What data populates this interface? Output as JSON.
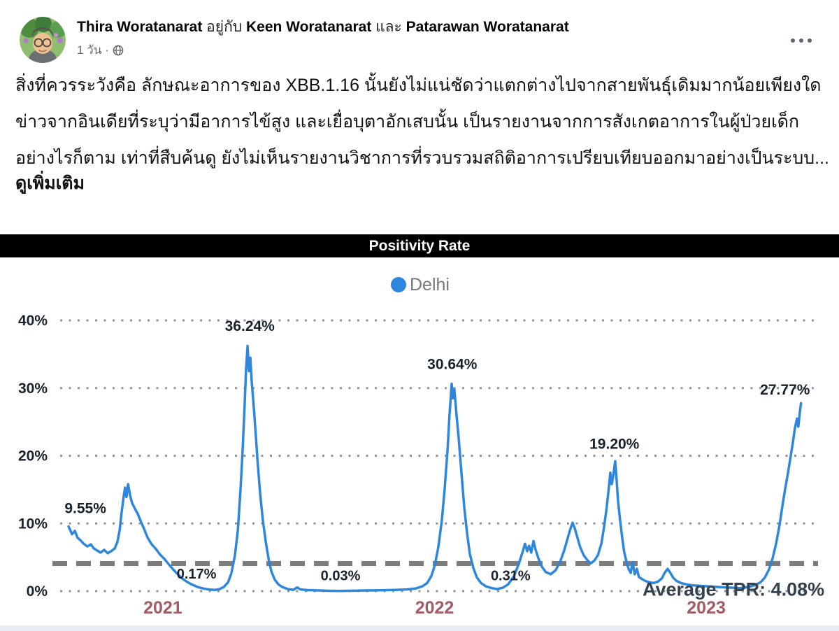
{
  "post": {
    "author": {
      "name1": "Thira Woratanarat",
      "with_text": " อยู่กับ ",
      "name2": "Keen Woratanarat",
      "and_text": " และ ",
      "name3": "Patarawan Woratanarat"
    },
    "meta": {
      "time": "1 วัน",
      "separator": "·",
      "privacy_icon": "globe-icon"
    },
    "paragraphs": [
      "สิ่งที่ควรระวังคือ ลักษณะอาการของ XBB.1.16 นั้นยังไม่แน่ชัดว่าแตกต่างไปจากสายพันธุ์เดิมมากน้อยเพียงใด",
      "ข่าวจากอินเดียที่ระบุว่ามีอาการไข้สูง และเยื่อบุตาอักเสบนั้น เป็นรายงานจากการสังเกตอาการในผู้ป่วยเด็ก",
      "อย่างไรก็ตาม เท่าที่สืบค้นดู ยังไม่เห็นรายงานวิชาการที่รวบรวมสถิติอาการเปรียบเทียบออกมาอย่างเป็นระบบ..."
    ],
    "see_more_label": "ดูเพิ่มเติม"
  },
  "colors": {
    "line_blue": "#2e86dd",
    "titlebar_bg": "#000000",
    "titlebar_text": "#ffffff",
    "grid_dots": "#8f959e",
    "avg_line": "#7c7c7c",
    "axis_label": "#18222e",
    "year_label": "#a35b64",
    "legend_text": "#75787e",
    "avg_label": "#36414e",
    "timestamp": "#65676b"
  },
  "chart_data": {
    "type": "line",
    "title": "Positivity Rate",
    "legend": [
      {
        "name": "Delhi",
        "color": "#2e86dd"
      }
    ],
    "legend_position": "top-center",
    "grid": "dotted-horizontal",
    "xlim": [
      2020.64,
      2023.36
    ],
    "ylim": [
      0,
      40.3
    ],
    "y_ticks": [
      {
        "label": "0%",
        "value": 0
      },
      {
        "label": "10%",
        "value": 10
      },
      {
        "label": "20%",
        "value": 20
      },
      {
        "label": "30%",
        "value": 30
      },
      {
        "label": "40%",
        "value": 40
      }
    ],
    "x_ticks": [
      {
        "label": "2021",
        "value": 2021
      },
      {
        "label": "2022",
        "value": 2022
      },
      {
        "label": "2023",
        "value": 2023
      }
    ],
    "average_line": {
      "value": 4.08,
      "label": "Average TPR: 4.08%"
    },
    "annotations": [
      {
        "text": "9.55%",
        "x": 2020.715,
        "y": 12.3,
        "anchor": "middle",
        "size": 21
      },
      {
        "text": "36.24%",
        "x": 2021.32,
        "y": 39.2,
        "anchor": "middle",
        "size": 21
      },
      {
        "text": "30.64%",
        "x": 2022.065,
        "y": 33.6,
        "anchor": "middle",
        "size": 21
      },
      {
        "text": "19.20%",
        "x": 2022.662,
        "y": 21.8,
        "anchor": "middle",
        "size": 21
      },
      {
        "text": "27.77%",
        "x": 2023.29,
        "y": 29.8,
        "anchor": "middle",
        "size": 21
      },
      {
        "text": "0.17%",
        "x": 2021.124,
        "y": 2.6,
        "anchor": "middle",
        "size": 20
      },
      {
        "text": "0.03%",
        "x": 2021.654,
        "y": 2.3,
        "anchor": "middle",
        "size": 20
      },
      {
        "text": "0.31%",
        "x": 2022.28,
        "y": 2.3,
        "anchor": "middle",
        "size": 20
      },
      {
        "text": "Average TPR: 4.08%",
        "x": 2023.435,
        "y": 0.3,
        "anchor": "end",
        "size": 27,
        "color": "#36414e"
      }
    ],
    "series": [
      {
        "name": "Delhi",
        "points": [
          [
            2020.653,
            9.55
          ],
          [
            2020.666,
            8.4
          ],
          [
            2020.676,
            8.9
          ],
          [
            2020.686,
            7.9
          ],
          [
            2020.697,
            7.5
          ],
          [
            2020.709,
            7.0
          ],
          [
            2020.722,
            6.6
          ],
          [
            2020.735,
            6.9
          ],
          [
            2020.746,
            6.3
          ],
          [
            2020.758,
            6.0
          ],
          [
            2020.771,
            5.7
          ],
          [
            2020.784,
            6.1
          ],
          [
            2020.797,
            5.6
          ],
          [
            2020.81,
            5.9
          ],
          [
            2020.823,
            6.3
          ],
          [
            2020.833,
            7.3
          ],
          [
            2020.841,
            9.0
          ],
          [
            2020.848,
            11.5
          ],
          [
            2020.856,
            14.0
          ],
          [
            2020.861,
            15.3
          ],
          [
            2020.866,
            13.9
          ],
          [
            2020.872,
            15.8
          ],
          [
            2020.879,
            14.2
          ],
          [
            2020.887,
            13.0
          ],
          [
            2020.897,
            12.2
          ],
          [
            2020.908,
            11.4
          ],
          [
            2020.918,
            10.4
          ],
          [
            2020.931,
            9.2
          ],
          [
            2020.944,
            7.9
          ],
          [
            2020.959,
            6.9
          ],
          [
            2020.975,
            6.2
          ],
          [
            2020.99,
            5.4
          ],
          [
            2021.005,
            4.8
          ],
          [
            2021.021,
            4.0
          ],
          [
            2021.036,
            3.3
          ],
          [
            2021.052,
            2.6
          ],
          [
            2021.07,
            1.9
          ],
          [
            2021.088,
            1.4
          ],
          [
            2021.108,
            0.95
          ],
          [
            2021.129,
            0.6
          ],
          [
            2021.15,
            0.38
          ],
          [
            2021.17,
            0.25
          ],
          [
            2021.191,
            0.17
          ],
          [
            2021.209,
            0.3
          ],
          [
            2021.224,
            0.6
          ],
          [
            2021.24,
            1.3
          ],
          [
            2021.252,
            2.6
          ],
          [
            2021.265,
            5.2
          ],
          [
            2021.276,
            9.0
          ],
          [
            2021.286,
            15.0
          ],
          [
            2021.294,
            21.0
          ],
          [
            2021.301,
            27.5
          ],
          [
            2021.306,
            32.5
          ],
          [
            2021.312,
            36.24
          ],
          [
            2021.317,
            32.5
          ],
          [
            2021.322,
            34.5
          ],
          [
            2021.327,
            31.0
          ],
          [
            2021.335,
            27.0
          ],
          [
            2021.343,
            22.5
          ],
          [
            2021.35,
            18.5
          ],
          [
            2021.358,
            14.5
          ],
          [
            2021.368,
            10.5
          ],
          [
            2021.379,
            7.2
          ],
          [
            2021.389,
            4.8
          ],
          [
            2021.399,
            3.0
          ],
          [
            2021.412,
            1.7
          ],
          [
            2021.425,
            1.0
          ],
          [
            2021.44,
            0.6
          ],
          [
            2021.461,
            0.3
          ],
          [
            2021.481,
            0.2
          ],
          [
            2021.494,
            0.55
          ],
          [
            2021.507,
            0.25
          ],
          [
            2021.533,
            0.15
          ],
          [
            2021.571,
            0.1
          ],
          [
            2021.61,
            0.05
          ],
          [
            2021.654,
            0.03
          ],
          [
            2021.7,
            0.06
          ],
          [
            2021.752,
            0.1
          ],
          [
            2021.803,
            0.13
          ],
          [
            2021.854,
            0.18
          ],
          [
            2021.898,
            0.25
          ],
          [
            2021.932,
            0.4
          ],
          [
            2021.955,
            0.7
          ],
          [
            2021.973,
            1.2
          ],
          [
            2021.988,
            2.2
          ],
          [
            2022.001,
            3.8
          ],
          [
            2022.014,
            6.5
          ],
          [
            2022.027,
            10.5
          ],
          [
            2022.037,
            15.0
          ],
          [
            2022.048,
            21.0
          ],
          [
            2022.055,
            26.0
          ],
          [
            2022.063,
            30.64
          ],
          [
            2022.068,
            28.5
          ],
          [
            2022.073,
            29.8
          ],
          [
            2022.081,
            26.0
          ],
          [
            2022.089,
            22.5
          ],
          [
            2022.099,
            17.5
          ],
          [
            2022.109,
            12.5
          ],
          [
            2022.12,
            8.5
          ],
          [
            2022.13,
            5.5
          ],
          [
            2022.143,
            3.4
          ],
          [
            2022.156,
            2.0
          ],
          [
            2022.171,
            1.2
          ],
          [
            2022.189,
            0.7
          ],
          [
            2022.21,
            0.45
          ],
          [
            2022.23,
            0.31
          ],
          [
            2022.251,
            0.5
          ],
          [
            2022.271,
            1.0
          ],
          [
            2022.292,
            2.2
          ],
          [
            2022.31,
            4.0
          ],
          [
            2022.325,
            5.9
          ],
          [
            2022.333,
            7.0
          ],
          [
            2022.341,
            5.9
          ],
          [
            2022.348,
            6.7
          ],
          [
            2022.356,
            5.7
          ],
          [
            2022.364,
            7.4
          ],
          [
            2022.372,
            6.1
          ],
          [
            2022.382,
            4.9
          ],
          [
            2022.395,
            3.6
          ],
          [
            2022.41,
            2.8
          ],
          [
            2022.428,
            2.5
          ],
          [
            2022.446,
            3.1
          ],
          [
            2022.462,
            4.3
          ],
          [
            2022.477,
            6.0
          ],
          [
            2022.49,
            7.8
          ],
          [
            2022.5,
            9.2
          ],
          [
            2022.508,
            10.1
          ],
          [
            2022.516,
            9.3
          ],
          [
            2022.526,
            7.9
          ],
          [
            2022.536,
            6.5
          ],
          [
            2022.549,
            5.3
          ],
          [
            2022.562,
            4.6
          ],
          [
            2022.575,
            4.1
          ],
          [
            2022.588,
            4.5
          ],
          [
            2022.601,
            5.3
          ],
          [
            2022.614,
            7.0
          ],
          [
            2022.624,
            9.5
          ],
          [
            2022.634,
            12.5
          ],
          [
            2022.642,
            15.5
          ],
          [
            2022.647,
            17.5
          ],
          [
            2022.652,
            15.8
          ],
          [
            2022.657,
            16.8
          ],
          [
            2022.665,
            19.2
          ],
          [
            2022.67,
            16.5
          ],
          [
            2022.675,
            13.5
          ],
          [
            2022.683,
            10.5
          ],
          [
            2022.691,
            7.8
          ],
          [
            2022.698,
            5.8
          ],
          [
            2022.706,
            4.4
          ],
          [
            2022.714,
            3.3
          ],
          [
            2022.722,
            2.7
          ],
          [
            2022.729,
            4.3
          ],
          [
            2022.737,
            2.5
          ],
          [
            2022.745,
            3.3
          ],
          [
            2022.752,
            2.1
          ],
          [
            2022.763,
            1.8
          ],
          [
            2022.776,
            1.5
          ],
          [
            2022.791,
            1.3
          ],
          [
            2022.806,
            1.2
          ],
          [
            2022.822,
            1.4
          ],
          [
            2022.837,
            1.9
          ],
          [
            2022.847,
            2.7
          ],
          [
            2022.858,
            3.3
          ],
          [
            2022.868,
            2.7
          ],
          [
            2022.878,
            2.0
          ],
          [
            2022.891,
            1.5
          ],
          [
            2022.907,
            1.2
          ],
          [
            2022.927,
            1.0
          ],
          [
            2022.95,
            0.85
          ],
          [
            2022.974,
            0.8
          ],
          [
            2022.999,
            0.72
          ],
          [
            2023.025,
            0.66
          ],
          [
            2023.051,
            0.6
          ],
          [
            2023.077,
            0.55
          ],
          [
            2023.102,
            0.5
          ],
          [
            2023.123,
            0.45
          ],
          [
            2023.144,
            0.55
          ],
          [
            2023.164,
            0.7
          ],
          [
            2023.182,
            0.95
          ],
          [
            2023.2,
            1.3
          ],
          [
            2023.216,
            2.0
          ],
          [
            2023.231,
            3.2
          ],
          [
            2023.244,
            4.8
          ],
          [
            2023.257,
            7.0
          ],
          [
            2023.27,
            9.8
          ],
          [
            2023.28,
            12.5
          ],
          [
            2023.29,
            15.0
          ],
          [
            2023.301,
            17.5
          ],
          [
            2023.311,
            20.0
          ],
          [
            2023.319,
            22.0
          ],
          [
            2023.326,
            24.0
          ],
          [
            2023.334,
            25.5
          ],
          [
            2023.339,
            24.3
          ],
          [
            2023.344,
            26.3
          ],
          [
            2023.349,
            27.77
          ]
        ]
      }
    ]
  }
}
